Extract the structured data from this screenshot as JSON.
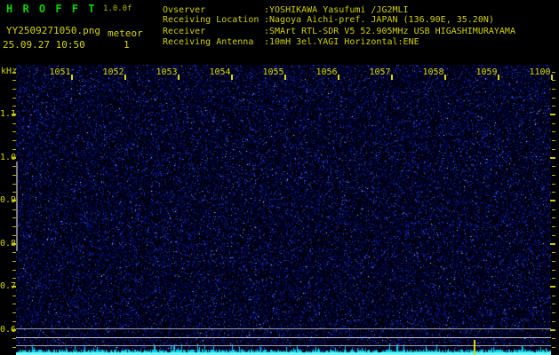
{
  "header": {
    "app_title": "H R O F F T",
    "version": "1.0.0f",
    "filename": "YY2509271050.png",
    "mode": "meteor",
    "datetime": "25.09.27 10:50",
    "meteor_count": "1",
    "info": [
      {
        "label": "Ovserver",
        "value": ":YOSHIKAWA Yasufumi /JG2MLI"
      },
      {
        "label": "Receiving Location",
        "value": ":Nagoya Aichi-pref. JAPAN (136.90E, 35.20N)"
      },
      {
        "label": "Receiver",
        "value": ":SMArt RTL-SDR V5 52.905MHz USB HIGASHIMURAYAMA"
      },
      {
        "label": "Receiving Antenna",
        "value": ":10mH 3el.YAGI Horizontal:ENE"
      }
    ]
  },
  "spectrogram": {
    "y_axis_unit": "kHz",
    "x_tick_labels": [
      "1051",
      "1052",
      "1053",
      "1054",
      "1055",
      "1056",
      "1057",
      "1058",
      "1059",
      "1100"
    ],
    "y_tick_labels": [
      "1.1",
      "1.0",
      "0.9",
      "0.8",
      "0.7",
      "0.6"
    ],
    "colors": {
      "label_yellow": "#d4d400",
      "title_green": "#00d400",
      "version_olive": "#b4b400",
      "trace_cyan": "#00e0f0",
      "grid_grey": "#a0a0a8",
      "marker_yellow": "#d8d800",
      "noise_background": "#000000"
    }
  }
}
